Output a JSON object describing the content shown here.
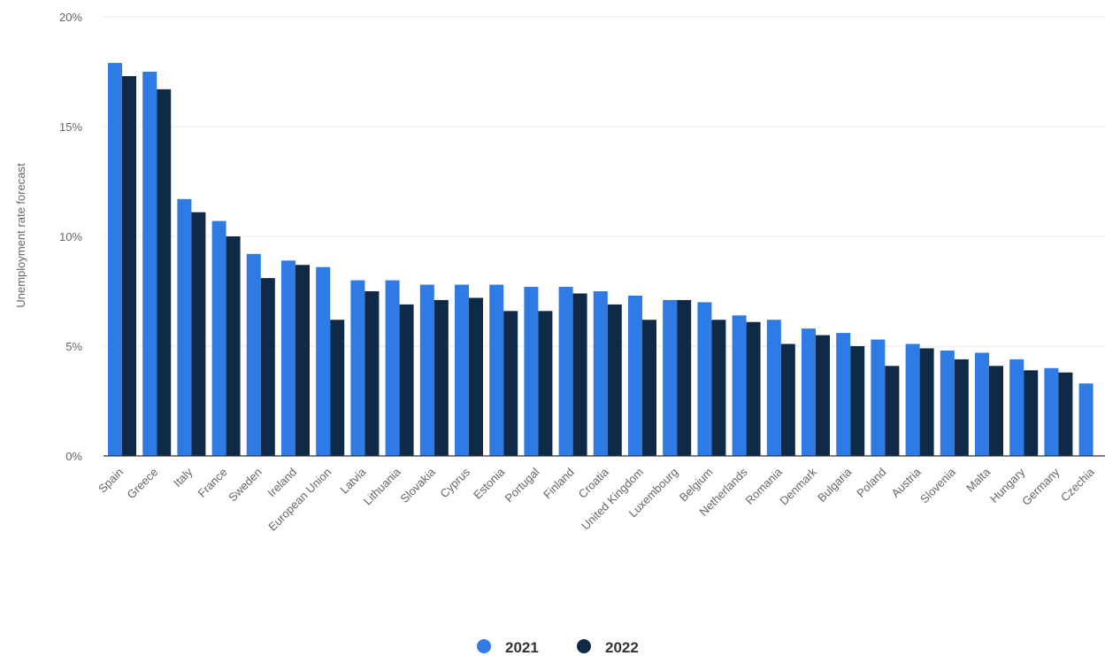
{
  "chart_data": {
    "type": "bar",
    "ylabel": "Unemployment rate forecast",
    "xlabel": "",
    "ylim": [
      0,
      20
    ],
    "yticks": [
      0,
      5,
      10,
      15,
      20
    ],
    "ytick_labels": [
      "0%",
      "5%",
      "10%",
      "15%",
      "20%"
    ],
    "grid": true,
    "legend_position": "bottom-center",
    "categories": [
      "Spain",
      "Greece",
      "Italy",
      "France",
      "Sweden",
      "Ireland",
      "European Union",
      "Latvia",
      "Lithuania",
      "Slovakia",
      "Cyprus",
      "Estonia",
      "Portugal",
      "Finland",
      "Croatia",
      "United Kingdom",
      "Luxembourg",
      "Belgium",
      "Netherlands",
      "Romania",
      "Denmark",
      "Bulgaria",
      "Poland",
      "Austria",
      "Slovenia",
      "Malta",
      "Hungary",
      "Germany",
      "Czechia"
    ],
    "series": [
      {
        "name": "2021",
        "color": "#2e7be6",
        "values": [
          17.9,
          17.5,
          11.7,
          10.7,
          9.2,
          8.9,
          8.6,
          8.0,
          8.0,
          7.8,
          7.8,
          7.8,
          7.7,
          7.7,
          7.5,
          7.3,
          7.1,
          7.0,
          6.4,
          6.2,
          5.8,
          5.6,
          5.3,
          5.1,
          4.8,
          4.7,
          4.4,
          4.0,
          3.3
        ]
      },
      {
        "name": "2022",
        "color": "#0e2a47",
        "values": [
          17.3,
          16.7,
          11.1,
          10.0,
          8.1,
          8.7,
          6.2,
          7.5,
          6.9,
          7.1,
          7.2,
          6.6,
          6.6,
          7.4,
          6.9,
          6.2,
          7.1,
          6.2,
          6.1,
          5.1,
          5.5,
          5.0,
          4.1,
          4.9,
          4.4,
          4.1,
          3.9,
          3.8,
          null
        ]
      }
    ]
  }
}
